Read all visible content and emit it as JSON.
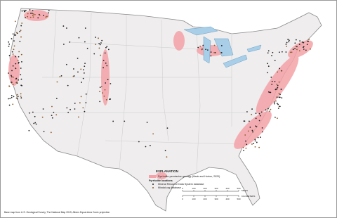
{
  "legend": {
    "title": "EXPLANATION",
    "geology": "Pyrrhotite-permissive geology (Mauk and Horton, 2020)",
    "locations_title": "Pyrrhotite locations",
    "mrds": "Mineral Resource Data System database",
    "mindat": "Mindat.org database"
  },
  "scale": {
    "miles_ticks": [
      0,
      100,
      200,
      300,
      400,
      500
    ],
    "miles_unit": "MILES",
    "km_ticks": [
      0,
      100,
      200,
      300,
      400,
      500
    ],
    "km_unit": "KILOMETERS"
  },
  "footer": "Base map from U.S. Geological Survey, The National Map 2019; Albers Equal-Area Conic projection"
}
